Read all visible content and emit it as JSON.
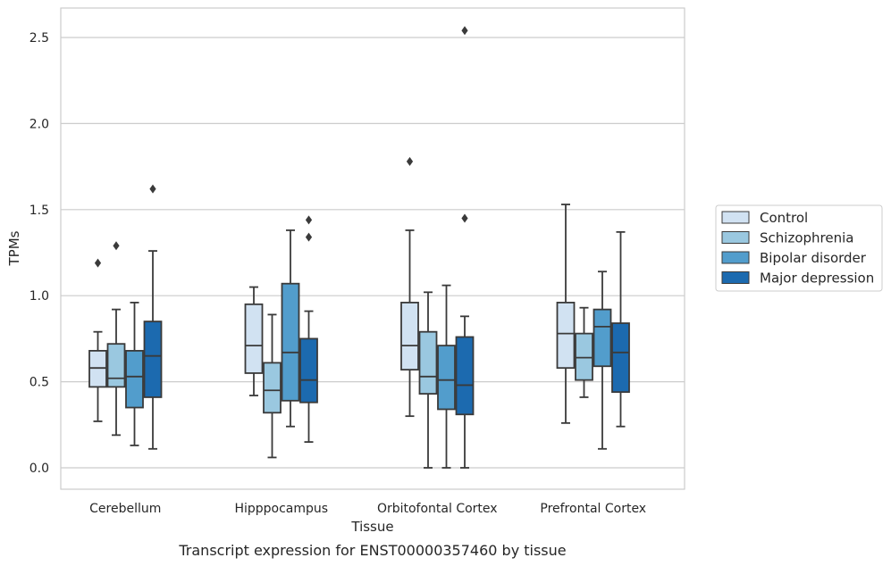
{
  "chart_data": {
    "type": "box",
    "xlabel": "Tissue",
    "ylabel": "TPMs",
    "caption": "Transcript expression for ENST00000357460 by tissue",
    "ylim": [
      -0.12,
      2.68
    ],
    "yticks": [
      0.0,
      0.5,
      1.0,
      1.5,
      2.0,
      2.5
    ],
    "ytick_labels": [
      "0.0",
      "0.5",
      "1.0",
      "1.5",
      "2.0",
      "2.5"
    ],
    "grid": "horizontal",
    "legend_position": "right",
    "categories": [
      "Cerebellum",
      "Hipppocampus",
      "Orbitofontal Cortex",
      "Prefrontal Cortex"
    ],
    "series": [
      {
        "name": "Control",
        "color": "#d1e2f2",
        "boxes": [
          {
            "whisker_low": 0.27,
            "q1": 0.47,
            "median": 0.58,
            "q3": 0.68,
            "whisker_high": 0.79,
            "outliers": [
              1.19
            ]
          },
          {
            "whisker_low": 0.42,
            "q1": 0.55,
            "median": 0.71,
            "q3": 0.95,
            "whisker_high": 1.05,
            "outliers": []
          },
          {
            "whisker_low": 0.3,
            "q1": 0.57,
            "median": 0.71,
            "q3": 0.96,
            "whisker_high": 1.38,
            "outliers": [
              1.78
            ]
          },
          {
            "whisker_low": 0.26,
            "q1": 0.58,
            "median": 0.78,
            "q3": 0.96,
            "whisker_high": 1.53,
            "outliers": []
          }
        ]
      },
      {
        "name": "Schizophrenia",
        "color": "#9ac8e0",
        "boxes": [
          {
            "whisker_low": 0.19,
            "q1": 0.47,
            "median": 0.52,
            "q3": 0.72,
            "whisker_high": 0.92,
            "outliers": [
              1.29
            ]
          },
          {
            "whisker_low": 0.06,
            "q1": 0.32,
            "median": 0.45,
            "q3": 0.61,
            "whisker_high": 0.89,
            "outliers": []
          },
          {
            "whisker_low": 0.0,
            "q1": 0.43,
            "median": 0.53,
            "q3": 0.79,
            "whisker_high": 1.02,
            "outliers": []
          },
          {
            "whisker_low": 0.41,
            "q1": 0.51,
            "median": 0.64,
            "q3": 0.78,
            "whisker_high": 0.93,
            "outliers": []
          }
        ]
      },
      {
        "name": "Bipolar disorder",
        "color": "#529dcc",
        "boxes": [
          {
            "whisker_low": 0.13,
            "q1": 0.35,
            "median": 0.53,
            "q3": 0.68,
            "whisker_high": 0.96,
            "outliers": []
          },
          {
            "whisker_low": 0.24,
            "q1": 0.39,
            "median": 0.67,
            "q3": 1.07,
            "whisker_high": 1.38,
            "outliers": []
          },
          {
            "whisker_low": 0.0,
            "q1": 0.34,
            "median": 0.51,
            "q3": 0.71,
            "whisker_high": 1.06,
            "outliers": []
          },
          {
            "whisker_low": 0.11,
            "q1": 0.59,
            "median": 0.82,
            "q3": 0.92,
            "whisker_high": 1.14,
            "outliers": []
          }
        ]
      },
      {
        "name": "Major depression",
        "color": "#1c6aaf",
        "boxes": [
          {
            "whisker_low": 0.11,
            "q1": 0.41,
            "median": 0.65,
            "q3": 0.85,
            "whisker_high": 1.26,
            "outliers": [
              1.62
            ]
          },
          {
            "whisker_low": 0.15,
            "q1": 0.38,
            "median": 0.51,
            "q3": 0.75,
            "whisker_high": 0.91,
            "outliers": [
              1.34,
              1.44
            ]
          },
          {
            "whisker_low": 0.0,
            "q1": 0.31,
            "median": 0.48,
            "q3": 0.76,
            "whisker_high": 0.88,
            "outliers": [
              1.45,
              2.54
            ]
          },
          {
            "whisker_low": 0.24,
            "q1": 0.44,
            "median": 0.67,
            "q3": 0.84,
            "whisker_high": 1.37,
            "outliers": []
          }
        ]
      }
    ]
  }
}
